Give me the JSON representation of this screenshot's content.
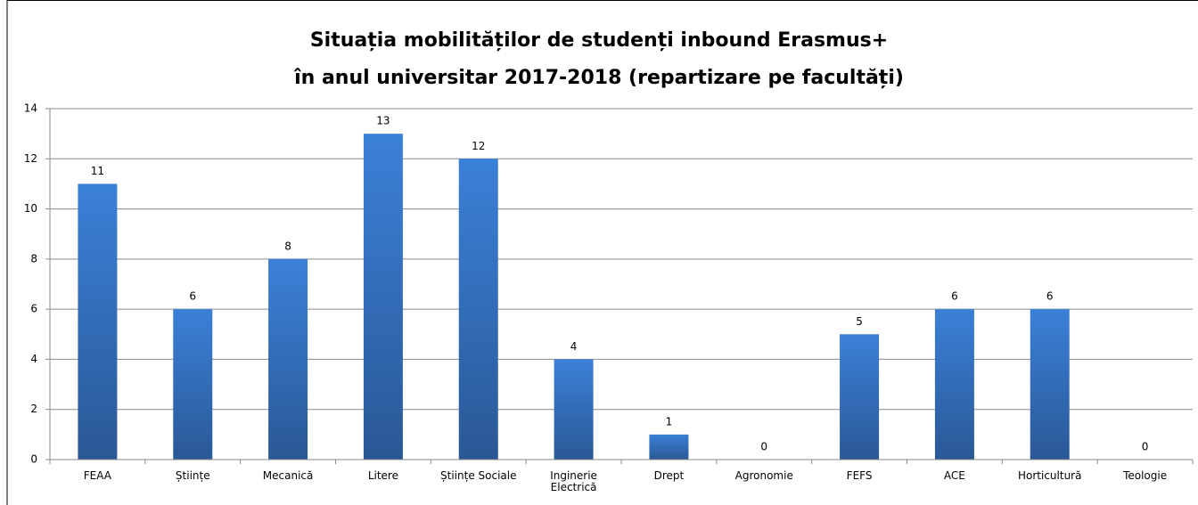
{
  "chart_data": {
    "type": "bar",
    "title": [
      "Situația mobilităților de studenți inbound Erasmus+",
      "în anul universitar 2017-2018 (repartizare pe facultăți)"
    ],
    "categories": [
      "FEAA",
      "Științe",
      "Mecanică",
      "Litere",
      "Științe Sociale",
      "Inginerie Electrică",
      "Drept",
      "Agronomie",
      "FEFS",
      "ACE",
      "Horticultură",
      "Teologie"
    ],
    "values": [
      11,
      6,
      8,
      13,
      12,
      4,
      1,
      0,
      5,
      6,
      6,
      0
    ],
    "color": "#3a7dd4",
    "ylim": [
      0,
      14
    ],
    "yticks": [
      0,
      2,
      4,
      6,
      8,
      10,
      12,
      14
    ],
    "grid": true
  }
}
